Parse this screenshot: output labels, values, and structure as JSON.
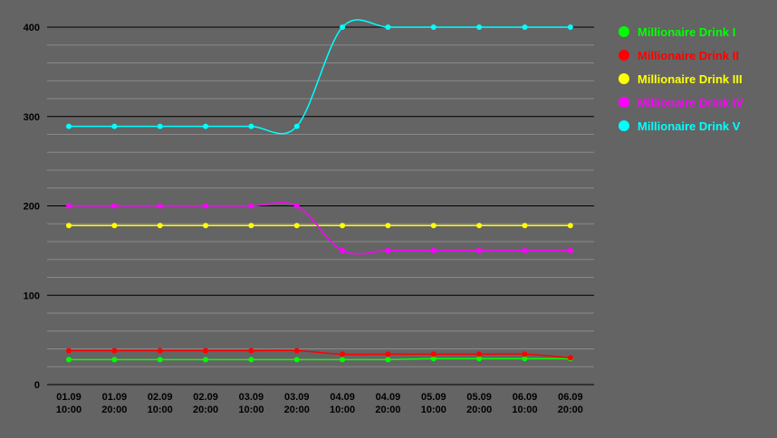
{
  "chart_data": {
    "type": "line",
    "title": "",
    "xlabel": "",
    "ylabel": "",
    "ylim": [
      0,
      400
    ],
    "y_ticks": [
      "0",
      "100",
      "200",
      "300",
      "400"
    ],
    "categories": [
      [
        "01.09",
        "10:00"
      ],
      [
        "01.09",
        "20:00"
      ],
      [
        "02.09",
        "10:00"
      ],
      [
        "02.09",
        "20:00"
      ],
      [
        "03.09",
        "10:00"
      ],
      [
        "03.09",
        "20:00"
      ],
      [
        "04.09",
        "10:00"
      ],
      [
        "04.09",
        "20:00"
      ],
      [
        "05.09",
        "10:00"
      ],
      [
        "05.09",
        "20:00"
      ],
      [
        "06.09",
        "10:00"
      ],
      [
        "06.09",
        "20:00"
      ]
    ],
    "grid": true,
    "legend_position": "right",
    "series": [
      {
        "name": "Millionaire Drink I",
        "color": "#00ff00",
        "values": [
          28,
          28,
          28,
          28,
          28,
          28,
          28,
          28,
          29,
          29,
          29,
          29
        ]
      },
      {
        "name": "Millionaire Drink II",
        "color": "#ff0000",
        "values": [
          38,
          38,
          38,
          38,
          38,
          38,
          34,
          34,
          34,
          34,
          34,
          30
        ]
      },
      {
        "name": "Millionaire Drink III",
        "color": "#ffff00",
        "values": [
          178,
          178,
          178,
          178,
          178,
          178,
          178,
          178,
          178,
          178,
          178,
          178
        ]
      },
      {
        "name": "Millionaire Drink IV",
        "color": "#ff00ff",
        "values": [
          200,
          200,
          200,
          200,
          200,
          200,
          150,
          150,
          150,
          150,
          150,
          150
        ]
      },
      {
        "name": "Millionaire Drink V",
        "color": "#00ffff",
        "values": [
          289,
          289,
          289,
          289,
          289,
          289,
          400,
          400,
          400,
          400,
          400,
          400
        ]
      }
    ]
  }
}
